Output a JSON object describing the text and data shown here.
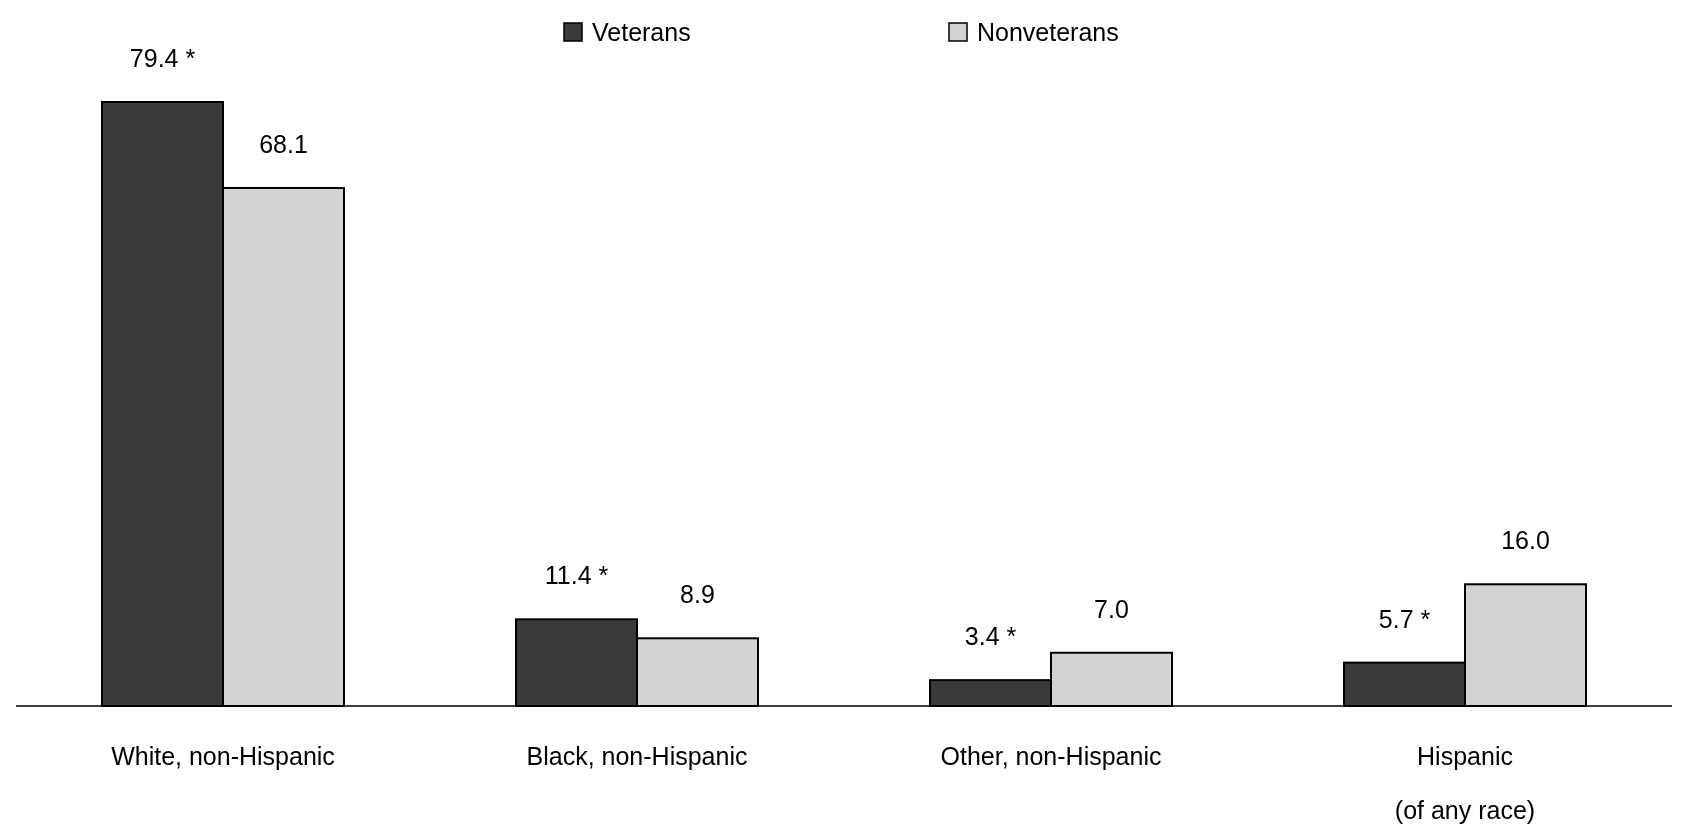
{
  "chart_data": {
    "type": "bar",
    "categories": [
      "White, non-Hispanic",
      "Black, non-Hispanic",
      "Other, non-Hispanic",
      "Hispanic\n(of any race)"
    ],
    "legend": "top",
    "series": [
      {
        "name": "Veterans",
        "color": "#3a3a3a",
        "values": [
          79.4,
          11.4,
          3.4,
          5.7
        ],
        "value_labels": [
          "79.4 *",
          "11.4 *",
          "3.4 *",
          "5.7 *"
        ]
      },
      {
        "name": "Nonveterans",
        "color": "#d3d3d3",
        "values": [
          68.1,
          8.9,
          7.0,
          16.0
        ],
        "value_labels": [
          "68.1",
          "8.9",
          "7.0",
          "16.0"
        ]
      }
    ]
  }
}
